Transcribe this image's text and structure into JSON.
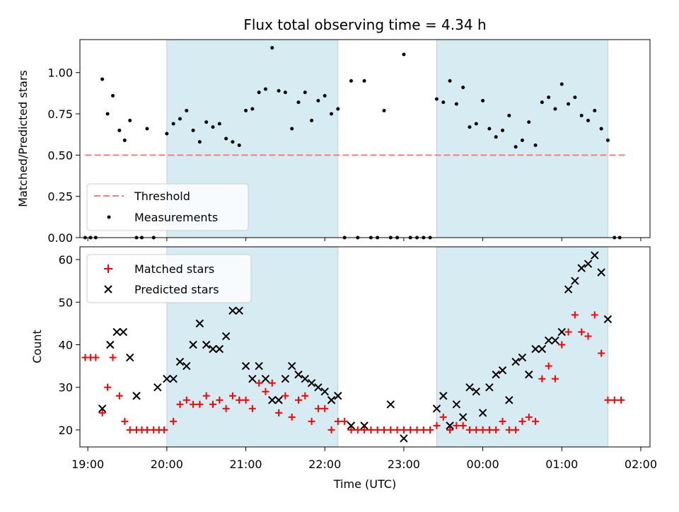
{
  "chart_data": [
    {
      "type": "scatter",
      "title": "Flux total observing time = 4.34 h",
      "xlabel": "",
      "ylabel": "Matched/Predicted stars",
      "ylim": [
        0,
        1.2
      ],
      "yticks": [
        "0.00",
        "0.25",
        "0.50",
        "0.75",
        "1.00"
      ],
      "ytick_values": [
        0,
        0.25,
        0.5,
        0.75,
        1.0
      ],
      "legend": {
        "placement": "lower-left",
        "entries": [
          "Threshold",
          "Measurements"
        ]
      },
      "threshold": {
        "name": "Threshold",
        "value": 0.5,
        "x_start": "18:58",
        "x_end": "01:48",
        "color": "#f08080"
      },
      "shaded_intervals": [
        [
          "20:00",
          "22:10"
        ],
        [
          "23:25",
          "01:35"
        ]
      ],
      "series": [
        {
          "name": "Measurements",
          "color": "#000000",
          "points": [
            [
              "18:58",
              0.0
            ],
            [
              "19:02",
              0.0
            ],
            [
              "19:06",
              0.0
            ],
            [
              "19:11",
              0.96
            ],
            [
              "19:15",
              0.75
            ],
            [
              "19:19",
              0.86
            ],
            [
              "19:24",
              0.65
            ],
            [
              "19:28",
              0.59
            ],
            [
              "19:32",
              0.71
            ],
            [
              "19:37",
              0.0
            ],
            [
              "19:41",
              0.0
            ],
            [
              "19:45",
              0.66
            ],
            [
              "19:50",
              0.0
            ],
            [
              "20:00",
              0.63
            ],
            [
              "20:05",
              0.69
            ],
            [
              "20:10",
              0.72
            ],
            [
              "20:15",
              0.77
            ],
            [
              "20:20",
              0.65
            ],
            [
              "20:25",
              0.58
            ],
            [
              "20:30",
              0.7
            ],
            [
              "20:35",
              0.67
            ],
            [
              "20:40",
              0.69
            ],
            [
              "20:45",
              0.6
            ],
            [
              "20:50",
              0.58
            ],
            [
              "20:55",
              0.56
            ],
            [
              "21:00",
              0.77
            ],
            [
              "21:05",
              0.78
            ],
            [
              "21:10",
              0.88
            ],
            [
              "21:15",
              0.9
            ],
            [
              "21:20",
              1.15
            ],
            [
              "21:25",
              0.89
            ],
            [
              "21:30",
              0.88
            ],
            [
              "21:35",
              0.66
            ],
            [
              "21:40",
              0.82
            ],
            [
              "21:45",
              0.88
            ],
            [
              "21:50",
              0.71
            ],
            [
              "21:55",
              0.83
            ],
            [
              "22:00",
              0.86
            ],
            [
              "22:05",
              0.75
            ],
            [
              "22:10",
              0.78
            ],
            [
              "22:15",
              0.0
            ],
            [
              "22:20",
              0.95
            ],
            [
              "22:25",
              0.0
            ],
            [
              "22:30",
              0.95
            ],
            [
              "22:35",
              0.0
            ],
            [
              "22:40",
              0.0
            ],
            [
              "22:45",
              0.77
            ],
            [
              "22:50",
              0.0
            ],
            [
              "22:55",
              0.0
            ],
            [
              "23:00",
              1.11
            ],
            [
              "23:05",
              0.0
            ],
            [
              "23:10",
              0.0
            ],
            [
              "23:15",
              0.0
            ],
            [
              "23:20",
              0.0
            ],
            [
              "23:25",
              0.84
            ],
            [
              "23:30",
              0.82
            ],
            [
              "23:35",
              0.95
            ],
            [
              "23:40",
              0.81
            ],
            [
              "23:45",
              0.91
            ],
            [
              "23:50",
              0.67
            ],
            [
              "23:55",
              0.69
            ],
            [
              "00:00",
              0.83
            ],
            [
              "00:05",
              0.66
            ],
            [
              "00:10",
              0.61
            ],
            [
              "00:15",
              0.65
            ],
            [
              "00:20",
              0.74
            ],
            [
              "00:25",
              0.55
            ],
            [
              "00:30",
              0.59
            ],
            [
              "00:35",
              0.7
            ],
            [
              "00:40",
              0.56
            ],
            [
              "00:45",
              0.82
            ],
            [
              "00:50",
              0.85
            ],
            [
              "00:55",
              0.78
            ],
            [
              "01:00",
              0.93
            ],
            [
              "01:05",
              0.81
            ],
            [
              "01:10",
              0.85
            ],
            [
              "01:15",
              0.74
            ],
            [
              "01:20",
              0.71
            ],
            [
              "01:25",
              0.77
            ],
            [
              "01:30",
              0.66
            ],
            [
              "01:35",
              0.59
            ],
            [
              "01:40",
              0.0
            ],
            [
              "01:44",
              0.0
            ]
          ]
        }
      ]
    },
    {
      "type": "scatter",
      "xlabel": "Time (UTC)",
      "ylabel": "Count",
      "ylim": [
        16,
        63
      ],
      "yticks": [
        "20",
        "30",
        "40",
        "50",
        "60"
      ],
      "ytick_values": [
        20,
        30,
        40,
        50,
        60
      ],
      "xticks": [
        "19:00",
        "20:00",
        "21:00",
        "22:00",
        "23:00",
        "00:00",
        "01:00",
        "02:00"
      ],
      "legend": {
        "placement": "upper-left",
        "entries": [
          "Matched stars",
          "Predicted stars"
        ]
      },
      "shaded_intervals": [
        [
          "20:00",
          "22:10"
        ],
        [
          "23:25",
          "01:35"
        ]
      ],
      "series": [
        {
          "name": "Matched stars",
          "marker": "+",
          "color": "#ff0000",
          "points": [
            [
              "18:58",
              37
            ],
            [
              "19:02",
              37
            ],
            [
              "19:06",
              37
            ],
            [
              "19:11",
              24
            ],
            [
              "19:15",
              30
            ],
            [
              "19:19",
              37
            ],
            [
              "19:24",
              28
            ],
            [
              "19:28",
              22
            ],
            [
              "19:32",
              20
            ],
            [
              "19:37",
              20
            ],
            [
              "19:41",
              20
            ],
            [
              "19:45",
              20
            ],
            [
              "19:50",
              20
            ],
            [
              "19:54",
              20
            ],
            [
              "19:58",
              20
            ],
            [
              "20:05",
              22
            ],
            [
              "20:10",
              26
            ],
            [
              "20:15",
              27
            ],
            [
              "20:20",
              26
            ],
            [
              "20:25",
              26
            ],
            [
              "20:30",
              28
            ],
            [
              "20:35",
              26
            ],
            [
              "20:40",
              27
            ],
            [
              "20:45",
              25
            ],
            [
              "20:50",
              28
            ],
            [
              "20:55",
              27
            ],
            [
              "21:00",
              27
            ],
            [
              "21:05",
              25
            ],
            [
              "21:10",
              31
            ],
            [
              "21:15",
              29
            ],
            [
              "21:20",
              31
            ],
            [
              "21:25",
              24
            ],
            [
              "21:30",
              28
            ],
            [
              "21:35",
              23
            ],
            [
              "21:40",
              27
            ],
            [
              "21:45",
              28
            ],
            [
              "21:50",
              22
            ],
            [
              "21:55",
              25
            ],
            [
              "22:00",
              25
            ],
            [
              "22:05",
              20
            ],
            [
              "22:10",
              22
            ],
            [
              "22:15",
              22
            ],
            [
              "22:20",
              20
            ],
            [
              "22:25",
              20
            ],
            [
              "22:30",
              20
            ],
            [
              "22:35",
              20
            ],
            [
              "22:40",
              20
            ],
            [
              "22:45",
              20
            ],
            [
              "22:50",
              20
            ],
            [
              "22:55",
              20
            ],
            [
              "23:00",
              20
            ],
            [
              "23:05",
              20
            ],
            [
              "23:10",
              20
            ],
            [
              "23:15",
              20
            ],
            [
              "23:20",
              20
            ],
            [
              "23:25",
              21
            ],
            [
              "23:30",
              23
            ],
            [
              "23:35",
              20
            ],
            [
              "23:40",
              21
            ],
            [
              "23:45",
              21
            ],
            [
              "23:50",
              20
            ],
            [
              "23:55",
              20
            ],
            [
              "00:00",
              20
            ],
            [
              "00:05",
              20
            ],
            [
              "00:10",
              20
            ],
            [
              "00:15",
              22
            ],
            [
              "00:20",
              20
            ],
            [
              "00:25",
              20
            ],
            [
              "00:30",
              22
            ],
            [
              "00:35",
              23
            ],
            [
              "00:40",
              22
            ],
            [
              "00:45",
              32
            ],
            [
              "00:50",
              35
            ],
            [
              "00:55",
              32
            ],
            [
              "01:00",
              40
            ],
            [
              "01:05",
              43
            ],
            [
              "01:10",
              47
            ],
            [
              "01:15",
              43
            ],
            [
              "01:20",
              42
            ],
            [
              "01:25",
              47
            ],
            [
              "01:30",
              38
            ],
            [
              "01:35",
              27
            ],
            [
              "01:40",
              27
            ],
            [
              "01:45",
              27
            ]
          ]
        },
        {
          "name": "Predicted stars",
          "marker": "x",
          "color": "#000000",
          "points": [
            [
              "19:11",
              25
            ],
            [
              "19:17",
              40
            ],
            [
              "19:22",
              43
            ],
            [
              "19:27",
              43
            ],
            [
              "19:32",
              37
            ],
            [
              "19:37",
              28
            ],
            [
              "19:53",
              30
            ],
            [
              "20:00",
              32
            ],
            [
              "20:05",
              32
            ],
            [
              "20:10",
              36
            ],
            [
              "20:15",
              35
            ],
            [
              "20:20",
              40
            ],
            [
              "20:25",
              45
            ],
            [
              "20:30",
              40
            ],
            [
              "20:35",
              39
            ],
            [
              "20:40",
              39
            ],
            [
              "20:45",
              42
            ],
            [
              "20:50",
              48
            ],
            [
              "20:55",
              48
            ],
            [
              "21:00",
              35
            ],
            [
              "21:05",
              32
            ],
            [
              "21:10",
              35
            ],
            [
              "21:15",
              32
            ],
            [
              "21:20",
              27
            ],
            [
              "21:25",
              27
            ],
            [
              "21:30",
              32
            ],
            [
              "21:35",
              35
            ],
            [
              "21:40",
              33
            ],
            [
              "21:45",
              32
            ],
            [
              "21:50",
              31
            ],
            [
              "21:55",
              30
            ],
            [
              "22:00",
              29
            ],
            [
              "22:05",
              27
            ],
            [
              "22:10",
              28
            ],
            [
              "22:20",
              21
            ],
            [
              "22:30",
              21
            ],
            [
              "22:50",
              26
            ],
            [
              "23:00",
              18
            ],
            [
              "23:25",
              25
            ],
            [
              "23:30",
              28
            ],
            [
              "23:35",
              21
            ],
            [
              "23:40",
              26
            ],
            [
              "23:45",
              23
            ],
            [
              "23:50",
              30
            ],
            [
              "23:55",
              29
            ],
            [
              "00:00",
              24
            ],
            [
              "00:05",
              30
            ],
            [
              "00:10",
              33
            ],
            [
              "00:15",
              34
            ],
            [
              "00:20",
              27
            ],
            [
              "00:25",
              36
            ],
            [
              "00:30",
              37
            ],
            [
              "00:35",
              33
            ],
            [
              "00:40",
              39
            ],
            [
              "00:45",
              39
            ],
            [
              "00:50",
              41
            ],
            [
              "00:55",
              41
            ],
            [
              "01:00",
              43
            ],
            [
              "01:05",
              53
            ],
            [
              "01:10",
              55
            ],
            [
              "01:15",
              58
            ],
            [
              "01:20",
              59
            ],
            [
              "01:25",
              61
            ],
            [
              "01:30",
              57
            ],
            [
              "01:35",
              46
            ]
          ]
        }
      ]
    }
  ],
  "colors": {
    "shade": "#add8e6",
    "matched": "#ff0000",
    "predicted": "#000000",
    "threshold": "#f08080"
  }
}
